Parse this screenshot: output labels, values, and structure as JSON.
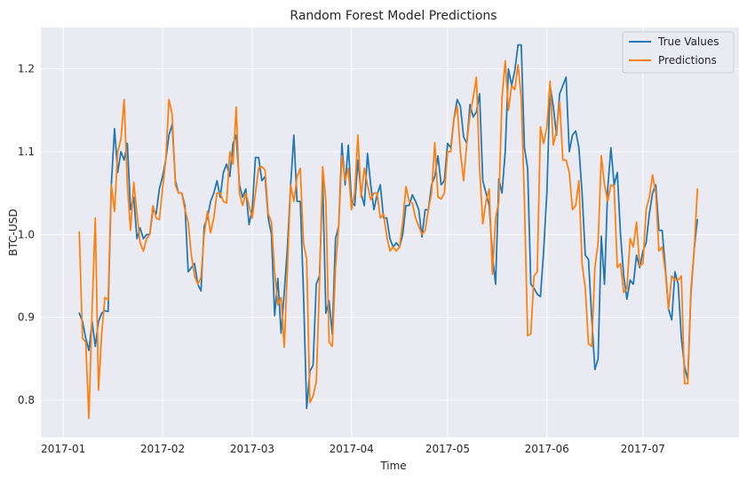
{
  "chart_data": {
    "type": "line",
    "title": "Random Forest Model Predictions",
    "xlabel": "Time",
    "ylabel": "BTC-USD",
    "xlim": [
      "2016-12-25",
      "2017-07-31"
    ],
    "ylim": [
      0.755,
      1.25
    ],
    "x_ticks": [
      {
        "date": "2017-01-01",
        "label": "2017-01"
      },
      {
        "date": "2017-02-01",
        "label": "2017-02"
      },
      {
        "date": "2017-03-01",
        "label": "2017-03"
      },
      {
        "date": "2017-04-01",
        "label": "2017-04"
      },
      {
        "date": "2017-05-01",
        "label": "2017-05"
      },
      {
        "date": "2017-06-01",
        "label": "2017-06"
      },
      {
        "date": "2017-07-01",
        "label": "2017-07"
      }
    ],
    "y_ticks": [
      0.8,
      0.9,
      1.0,
      1.1,
      1.2
    ],
    "y_tick_labels": [
      "0.8",
      "0.9",
      "1.0",
      "1.1",
      "1.2"
    ],
    "grid": true,
    "legend_position": "top-right",
    "start_date": "2017-01-06",
    "series": [
      {
        "name": "True Values",
        "color": "#1f77b4",
        "values": [
          0.905,
          0.895,
          0.875,
          0.86,
          0.895,
          0.865,
          0.895,
          0.905,
          0.908,
          0.907,
          1.06,
          1.128,
          1.075,
          1.1,
          1.09,
          1.11,
          1.03,
          1.045,
          0.995,
          1.008,
          0.995,
          1.0,
          1.0,
          1.03,
          1.025,
          1.055,
          1.07,
          1.09,
          1.12,
          1.133,
          1.065,
          1.05,
          1.05,
          1.035,
          0.955,
          0.96,
          0.965,
          0.94,
          0.932,
          1.01,
          1.02,
          1.04,
          1.05,
          1.065,
          1.045,
          1.075,
          1.085,
          1.07,
          1.11,
          1.12,
          1.06,
          1.045,
          1.055,
          1.012,
          1.03,
          1.093,
          1.093,
          1.065,
          1.07,
          1.02,
          1.0,
          0.902,
          0.947,
          0.881,
          0.93,
          0.985,
          1.06,
          1.12,
          1.04,
          1.04,
          0.93,
          0.79,
          0.835,
          0.842,
          0.94,
          0.95,
          1.065,
          0.905,
          0.92,
          0.88,
          0.995,
          1.01,
          1.11,
          1.06,
          1.108,
          1.04,
          1.035,
          1.09,
          1.05,
          1.035,
          1.098,
          1.06,
          1.03,
          1.048,
          1.06,
          1.02,
          1.02,
          0.995,
          0.985,
          0.99,
          0.985,
          1.0,
          1.035,
          1.035,
          1.048,
          1.04,
          1.03,
          0.997,
          1.03,
          1.03,
          1.06,
          1.07,
          1.095,
          1.06,
          1.065,
          1.11,
          1.105,
          1.14,
          1.163,
          1.155,
          1.118,
          1.11,
          1.157,
          1.142,
          1.148,
          1.17,
          1.065,
          1.05,
          1.035,
          0.975,
          0.94,
          1.067,
          1.05,
          1.1,
          1.2,
          1.18,
          1.198,
          1.229,
          1.229,
          1.105,
          1.08,
          0.94,
          0.935,
          0.928,
          0.925,
          0.98,
          1.05,
          1.18,
          1.155,
          1.12,
          1.17,
          1.18,
          1.19,
          1.1,
          1.12,
          1.125,
          1.105,
          1.05,
          0.975,
          0.97,
          0.9,
          0.837,
          0.85,
          0.998,
          0.94,
          1.055,
          1.105,
          1.06,
          1.075,
          1.0,
          0.95,
          0.922,
          0.945,
          0.94,
          0.975,
          0.96,
          0.98,
          0.99,
          1.025,
          1.05,
          1.06,
          1.005,
          1.005,
          0.96,
          0.91,
          0.897,
          0.955,
          0.94,
          0.875,
          0.84,
          0.825,
          0.93,
          0.982,
          1.018
        ]
      },
      {
        "name": "Predictions",
        "color": "#ff7f0e",
        "values": [
          1.003,
          0.875,
          0.87,
          0.778,
          0.91,
          1.02,
          0.812,
          0.88,
          0.924,
          0.921,
          1.06,
          1.028,
          1.1,
          1.115,
          1.163,
          1.06,
          1.005,
          1.063,
          1.025,
          0.99,
          0.98,
          0.995,
          1.0,
          1.035,
          1.02,
          1.018,
          1.055,
          1.09,
          1.163,
          1.145,
          1.06,
          1.05,
          1.05,
          1.03,
          1.015,
          0.975,
          0.95,
          0.94,
          0.948,
          1.0,
          1.028,
          1.002,
          1.02,
          1.05,
          1.05,
          1.04,
          1.038,
          1.1,
          1.085,
          1.154,
          1.05,
          1.035,
          1.05,
          1.035,
          1.02,
          1.05,
          1.08,
          1.082,
          1.078,
          1.025,
          1.015,
          0.955,
          0.915,
          0.924,
          0.864,
          0.96,
          1.06,
          1.04,
          1.07,
          1.08,
          0.99,
          0.97,
          0.797,
          0.805,
          0.822,
          0.94,
          1.082,
          1.04,
          0.87,
          0.865,
          0.96,
          1.01,
          1.095,
          1.065,
          1.08,
          1.03,
          1.05,
          1.12,
          1.045,
          1.08,
          1.06,
          1.042,
          1.05,
          1.05,
          1.02,
          1.025,
          0.998,
          0.98,
          0.985,
          0.98,
          0.985,
          1.015,
          1.058,
          1.04,
          1.038,
          1.02,
          1.01,
          1.0,
          1.005,
          1.03,
          1.05,
          1.111,
          1.045,
          1.043,
          1.05,
          1.1,
          1.1,
          1.14,
          1.155,
          1.1,
          1.065,
          1.11,
          1.145,
          1.165,
          1.19,
          1.08,
          1.013,
          1.04,
          1.055,
          0.952,
          1.02,
          1.04,
          1.165,
          1.21,
          1.15,
          1.18,
          1.175,
          1.205,
          1.165,
          1.04,
          0.878,
          0.88,
          0.95,
          0.955,
          1.13,
          1.11,
          1.13,
          1.185,
          1.108,
          1.125,
          1.16,
          1.09,
          1.09,
          1.075,
          1.03,
          1.035,
          1.065,
          0.965,
          0.935,
          0.868,
          0.865,
          0.96,
          0.99,
          1.095,
          1.06,
          1.04,
          1.06,
          1.058,
          0.96,
          0.965,
          0.93,
          0.935,
          0.995,
          0.985,
          1.015,
          0.962,
          0.965,
          1.03,
          1.045,
          1.072,
          1.05,
          0.98,
          0.985,
          0.955,
          0.91,
          0.95,
          0.945,
          0.945,
          0.95,
          0.82,
          0.82,
          0.935,
          0.98,
          1.055
        ]
      }
    ]
  }
}
